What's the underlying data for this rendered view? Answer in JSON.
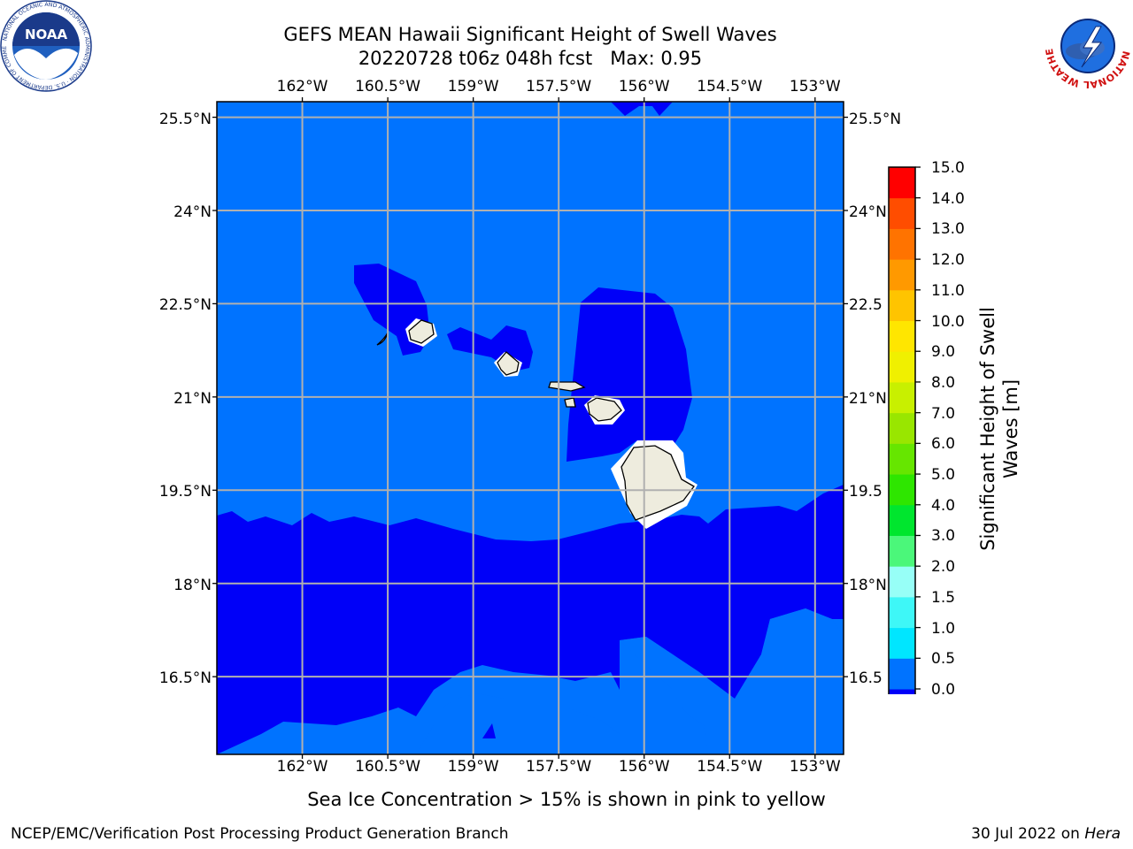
{
  "title": {
    "line1": "GEFS MEAN Hawaii Significant Height of Swell Waves",
    "line2": "20220728 t06z 048h fcst   Max: 0.95"
  },
  "map": {
    "lon_range": [
      -163.5,
      -152.5
    ],
    "lat_range": [
      15.25,
      25.75
    ],
    "lon_ticks": [
      "162°W",
      "160.5°W",
      "159°W",
      "157.5°W",
      "156°W",
      "154.5°W",
      "153°W"
    ],
    "lat_ticks": [
      "25.5°N",
      "24°N",
      "22.5°N",
      "21°N",
      "19.5°N",
      "18°N",
      "16.5°N"
    ],
    "lat_ticks_right": [
      "25.5°N",
      "24°N",
      "22.5",
      "21°N",
      "19.5",
      "18°N",
      "16.5"
    ],
    "grid": true,
    "ocean_colors": {
      "band_0_0.5": "#0000f8",
      "band_0.5_1.0": "#0073ff"
    },
    "land_color": "#eeecde",
    "islands": [
      "Kauai",
      "Oahu",
      "Molokai",
      "Maui",
      "Hawaii"
    ]
  },
  "colorbar": {
    "label_line1": "Significant Height of Swell",
    "label_line2": "Waves [m]",
    "ticks": [
      "15.0",
      "14.0",
      "13.0",
      "12.0",
      "11.0",
      "10.0",
      "9.0",
      "8.0",
      "7.0",
      "6.0",
      "5.0",
      "4.0",
      "3.0",
      "2.0",
      "1.5",
      "1.0",
      "0.5",
      "0.0"
    ],
    "colors": [
      "#0000f8",
      "#0073ff",
      "#00e6ff",
      "#3ef7f7",
      "#97fff7",
      "#4bf77a",
      "#00e62e",
      "#2ee600",
      "#66e600",
      "#99e600",
      "#c8f000",
      "#f0f000",
      "#ffe600",
      "#ffc400",
      "#ff9900",
      "#ff7300",
      "#ff4d00",
      "#ff0000"
    ]
  },
  "note": "Sea Ice Concentration > 15% is shown in pink to yellow",
  "footer": {
    "left": "NCEP/EMC/Verification Post Processing Product Generation Branch",
    "right_date": "30 Jul 2022 on ",
    "right_host": "Hera"
  },
  "logos": {
    "noaa": {
      "center_text": "NOAA",
      "ring_text": "NATIONAL OCEANIC AND ATMOSPHERIC ADMINISTRATION · U.S. DEPARTMENT OF COMMERCE"
    },
    "nws": {
      "ring_text": "NATIONAL WEATHER SERVICE"
    }
  }
}
